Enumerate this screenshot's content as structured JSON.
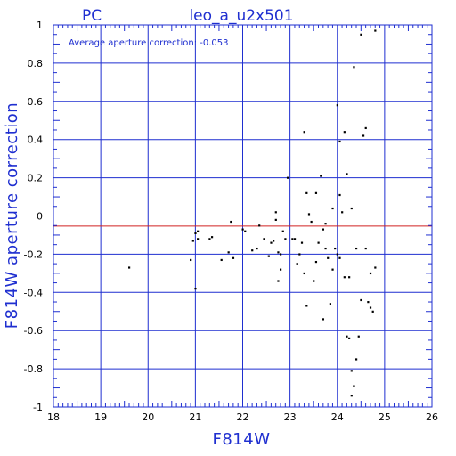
{
  "chart_data": {
    "type": "scatter",
    "title": "leo_a_u2x501",
    "subtitle": "PC",
    "xlabel": "F814W",
    "ylabel": "F814W aperture correction",
    "annotation": "Average aperture correction: -0.053",
    "average_correction": -0.053,
    "xlim": [
      18,
      26
    ],
    "ylim": [
      -1,
      1
    ],
    "x_ticks": [
      "18",
      "19",
      "20",
      "21",
      "22",
      "23",
      "24",
      "25",
      "26"
    ],
    "y_ticks": [
      "1",
      "0.8",
      "0.6",
      "0.4",
      "0.2",
      "0",
      "-0.2",
      "-0.4",
      "-0.6",
      "-0.8",
      "-1"
    ],
    "grid": true,
    "colors": {
      "axes": "#1f2fd0",
      "average_line": "#d02020",
      "points": "#000000"
    },
    "points": [
      [
        19.6,
        -0.27
      ],
      [
        20.9,
        -0.23
      ],
      [
        20.95,
        -0.13
      ],
      [
        21.0,
        -0.09
      ],
      [
        21.05,
        -0.12
      ],
      [
        21.05,
        -0.08
      ],
      [
        21.0,
        -0.38
      ],
      [
        21.3,
        -0.12
      ],
      [
        21.35,
        -0.11
      ],
      [
        21.55,
        -0.23
      ],
      [
        21.7,
        -0.19
      ],
      [
        21.75,
        -0.03
      ],
      [
        21.8,
        -0.22
      ],
      [
        22.0,
        -0.07
      ],
      [
        22.05,
        -0.08
      ],
      [
        22.2,
        -0.18
      ],
      [
        22.3,
        -0.17
      ],
      [
        22.35,
        -0.05
      ],
      [
        22.45,
        -0.12
      ],
      [
        22.55,
        -0.21
      ],
      [
        22.6,
        -0.14
      ],
      [
        22.65,
        -0.13
      ],
      [
        22.7,
        -0.02
      ],
      [
        22.7,
        0.02
      ],
      [
        22.75,
        -0.19
      ],
      [
        22.75,
        -0.34
      ],
      [
        22.8,
        -0.2
      ],
      [
        22.8,
        -0.28
      ],
      [
        22.85,
        -0.08
      ],
      [
        22.9,
        -0.12
      ],
      [
        22.95,
        0.2
      ],
      [
        23.05,
        -0.12
      ],
      [
        23.1,
        -0.12
      ],
      [
        23.15,
        -0.25
      ],
      [
        23.2,
        -0.2
      ],
      [
        23.25,
        -0.14
      ],
      [
        23.3,
        -0.3
      ],
      [
        23.3,
        0.44
      ],
      [
        23.35,
        -0.47
      ],
      [
        23.35,
        0.12
      ],
      [
        23.4,
        0.01
      ],
      [
        23.45,
        -0.03
      ],
      [
        23.5,
        -0.34
      ],
      [
        23.55,
        -0.24
      ],
      [
        23.55,
        0.12
      ],
      [
        23.6,
        -0.14
      ],
      [
        23.65,
        0.21
      ],
      [
        23.7,
        -0.07
      ],
      [
        23.7,
        -0.54
      ],
      [
        23.75,
        -0.04
      ],
      [
        23.75,
        -0.17
      ],
      [
        23.8,
        -0.22
      ],
      [
        23.85,
        -0.46
      ],
      [
        23.9,
        -0.28
      ],
      [
        23.9,
        0.04
      ],
      [
        23.95,
        -0.17
      ],
      [
        24.0,
        0.58
      ],
      [
        24.0,
        -0.2
      ],
      [
        24.05,
        0.39
      ],
      [
        24.05,
        -0.22
      ],
      [
        24.05,
        0.11
      ],
      [
        24.1,
        0.02
      ],
      [
        24.15,
        0.44
      ],
      [
        24.15,
        -0.32
      ],
      [
        24.2,
        -0.63
      ],
      [
        24.2,
        0.22
      ],
      [
        24.25,
        -0.32
      ],
      [
        24.25,
        -0.64
      ],
      [
        24.3,
        -0.81
      ],
      [
        24.3,
        -0.94
      ],
      [
        24.3,
        0.04
      ],
      [
        24.35,
        -0.89
      ],
      [
        24.35,
        0.78
      ],
      [
        24.4,
        -0.75
      ],
      [
        24.4,
        -0.17
      ],
      [
        24.45,
        -0.63
      ],
      [
        24.5,
        0.95
      ],
      [
        24.5,
        -0.44
      ],
      [
        24.55,
        0.42
      ],
      [
        24.6,
        0.46
      ],
      [
        24.6,
        -0.17
      ],
      [
        24.65,
        -0.45
      ],
      [
        24.7,
        -0.3
      ],
      [
        24.7,
        -0.48
      ],
      [
        24.75,
        -0.5
      ],
      [
        24.8,
        0.97
      ],
      [
        24.8,
        -0.27
      ]
    ]
  }
}
